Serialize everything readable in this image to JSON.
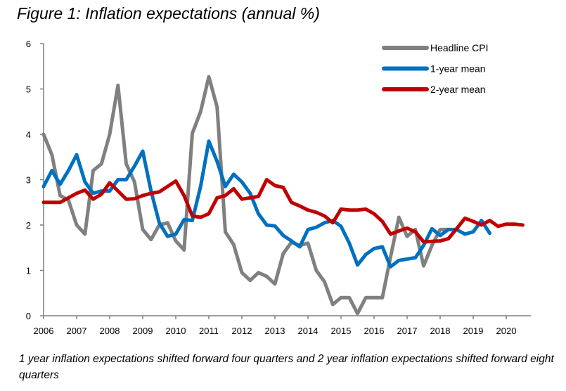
{
  "chart_data": {
    "type": "line",
    "title": "Figure 1: Inflation expectations (annual %)",
    "footnote": "1 year inflation expectations shifted forward four quarters and 2 year inflation expectations shifted forward eight quarters",
    "xlabel": "",
    "ylabel": "",
    "xlim": [
      2006,
      2020.75
    ],
    "ylim": [
      0,
      6
    ],
    "yticks": [
      "0",
      "1",
      "2",
      "3",
      "4",
      "5",
      "6"
    ],
    "xticks": [
      "2006",
      "2007",
      "2008",
      "2009",
      "2010",
      "2011",
      "2012",
      "2013",
      "2014",
      "2015",
      "2016",
      "2017",
      "2018",
      "2019",
      "2020"
    ],
    "x_start": 2006,
    "x_step": 0.25,
    "legend_position": "top-right",
    "series": [
      {
        "name": "Headline CPI",
        "color": "#808080",
        "values": [
          4.0,
          3.55,
          2.65,
          2.55,
          2.0,
          1.8,
          3.2,
          3.35,
          4.0,
          5.08,
          3.35,
          2.95,
          1.9,
          1.68,
          2.0,
          2.05,
          1.65,
          1.45,
          4.02,
          4.5,
          5.27,
          4.6,
          1.85,
          1.57,
          0.95,
          0.78,
          0.95,
          0.87,
          0.7,
          1.37,
          1.62,
          1.55,
          1.6,
          1.0,
          0.75,
          0.25,
          0.4,
          0.4,
          0.05,
          0.4,
          0.4,
          0.4,
          1.3,
          2.17,
          1.75,
          1.9,
          1.1,
          1.55,
          1.9,
          1.9
        ]
      },
      {
        "name": "1-year mean",
        "color": "#0070C0",
        "values": [
          2.85,
          3.2,
          2.9,
          3.2,
          3.55,
          2.95,
          2.7,
          2.75,
          2.75,
          3.0,
          3.0,
          3.3,
          3.63,
          2.75,
          2.05,
          1.75,
          1.8,
          2.12,
          2.1,
          2.85,
          3.85,
          3.4,
          2.85,
          3.12,
          2.95,
          2.7,
          2.25,
          2.0,
          1.98,
          1.77,
          1.65,
          1.52,
          1.9,
          1.95,
          2.05,
          2.1,
          1.97,
          1.6,
          1.12,
          1.35,
          1.48,
          1.52,
          1.08,
          1.22,
          1.25,
          1.28,
          1.55,
          1.92,
          1.77,
          1.9,
          1.9,
          1.8,
          1.85,
          2.1,
          1.82
        ]
      },
      {
        "name": "2-year mean",
        "color": "#C00000",
        "values": [
          2.5,
          2.5,
          2.5,
          2.6,
          2.7,
          2.77,
          2.57,
          2.68,
          2.93,
          2.75,
          2.57,
          2.58,
          2.65,
          2.7,
          2.73,
          2.85,
          2.97,
          2.65,
          2.2,
          2.17,
          2.25,
          2.6,
          2.65,
          2.8,
          2.57,
          2.6,
          2.63,
          3.0,
          2.87,
          2.83,
          2.5,
          2.42,
          2.33,
          2.28,
          2.2,
          2.05,
          2.35,
          2.33,
          2.33,
          2.35,
          2.25,
          2.08,
          1.8,
          1.87,
          1.93,
          1.85,
          1.63,
          1.64,
          1.65,
          1.7,
          1.92,
          2.15,
          2.08,
          2.0,
          2.1,
          1.97,
          2.02,
          2.02,
          2.0
        ]
      }
    ]
  }
}
